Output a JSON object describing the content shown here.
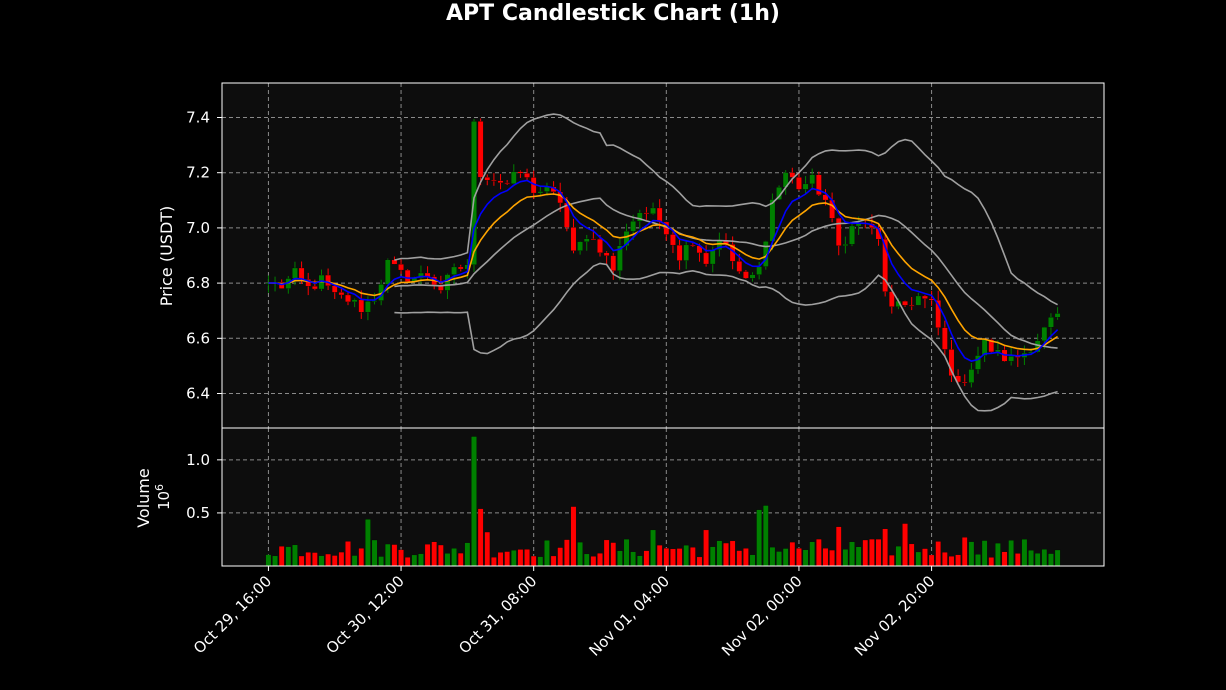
{
  "chart_data": {
    "type": "candlestick",
    "title": "APT Candlestick Chart (1h)",
    "colors": {
      "background": "#000000",
      "plot_background": "#0d0d0d",
      "up": "#008000",
      "down": "#ff0000",
      "sma_fast": "#0000ff",
      "sma_slow": "#ffa500",
      "bollinger": "#a0a0a0",
      "grid": "#8a8a8a",
      "text": "#ffffff"
    },
    "grid": true,
    "x_tick_labels": [
      "Oct 29, 16:00",
      "Oct 30, 12:00",
      "Oct 31, 08:00",
      "Nov 01, 04:00",
      "Nov 02, 00:00",
      "Nov 02, 20:00"
    ],
    "x_tick_hours": [
      0,
      20,
      40,
      60,
      80,
      100
    ],
    "x_range_hours": [
      -7,
      126
    ],
    "price_panel": {
      "ylabel": "Price (USDT)",
      "ylim": [
        6.275,
        7.525
      ],
      "yticks": [
        6.4,
        6.6,
        6.8,
        7.0,
        7.2,
        7.4
      ],
      "ytick_labels": [
        "6.4",
        "6.6",
        "6.8",
        "7.0",
        "7.2",
        "7.4"
      ]
    },
    "volume_panel": {
      "ylabel": "Volume",
      "scale_label": "10",
      "scale_exponent": "6",
      "ylim": [
        0,
        1.3
      ],
      "yticks": [
        0.5,
        1.0
      ],
      "ytick_labels": [
        "0.5",
        "1.0"
      ]
    },
    "candles_summary": {
      "count": 120,
      "open_first": 6.8,
      "close_last": 6.69,
      "high": 7.45,
      "low": 6.38
    },
    "anchors": [
      [
        0,
        6.8
      ],
      [
        2,
        6.79
      ],
      [
        4,
        6.83
      ],
      [
        6,
        6.78
      ],
      [
        8,
        6.81
      ],
      [
        10,
        6.75
      ],
      [
        12,
        6.74
      ],
      [
        14,
        6.71
      ],
      [
        16,
        6.75
      ],
      [
        18,
        6.87
      ],
      [
        20,
        6.83
      ],
      [
        22,
        6.82
      ],
      [
        24,
        6.83
      ],
      [
        26,
        6.78
      ],
      [
        28,
        6.84
      ],
      [
        30,
        6.87
      ],
      [
        31,
        7.37
      ],
      [
        32,
        7.2
      ],
      [
        34,
        7.18
      ],
      [
        36,
        7.16
      ],
      [
        38,
        7.2
      ],
      [
        40,
        7.14
      ],
      [
        42,
        7.13
      ],
      [
        44,
        7.1
      ],
      [
        46,
        6.9
      ],
      [
        48,
        6.98
      ],
      [
        50,
        6.93
      ],
      [
        52,
        6.85
      ],
      [
        54,
        7.0
      ],
      [
        56,
        7.06
      ],
      [
        58,
        7.05
      ],
      [
        60,
        7.0
      ],
      [
        62,
        6.9
      ],
      [
        64,
        6.96
      ],
      [
        66,
        6.88
      ],
      [
        68,
        6.97
      ],
      [
        70,
        6.88
      ],
      [
        72,
        6.8
      ],
      [
        74,
        6.85
      ],
      [
        76,
        7.1
      ],
      [
        78,
        7.2
      ],
      [
        80,
        7.15
      ],
      [
        82,
        7.17
      ],
      [
        84,
        7.1
      ],
      [
        86,
        6.93
      ],
      [
        88,
        7.0
      ],
      [
        90,
        7.02
      ],
      [
        92,
        6.95
      ],
      [
        93,
        6.78
      ],
      [
        94,
        6.7
      ],
      [
        96,
        6.72
      ],
      [
        98,
        6.75
      ],
      [
        100,
        6.72
      ],
      [
        102,
        6.55
      ],
      [
        104,
        6.42
      ],
      [
        106,
        6.5
      ],
      [
        108,
        6.58
      ],
      [
        110,
        6.54
      ],
      [
        112,
        6.52
      ],
      [
        114,
        6.55
      ],
      [
        116,
        6.6
      ],
      [
        119,
        6.69
      ]
    ],
    "volume_spikes": [
      [
        15,
        0.44
      ],
      [
        31,
        1.22
      ],
      [
        32,
        0.54
      ],
      [
        33,
        0.32
      ],
      [
        46,
        0.56
      ],
      [
        58,
        0.34
      ],
      [
        66,
        0.34
      ],
      [
        74,
        0.53
      ],
      [
        75,
        0.57
      ],
      [
        86,
        0.37
      ],
      [
        93,
        0.35
      ],
      [
        96,
        0.4
      ],
      [
        105,
        0.27
      ],
      [
        108,
        0.24
      ]
    ],
    "volume_baseline": 0.08
  }
}
